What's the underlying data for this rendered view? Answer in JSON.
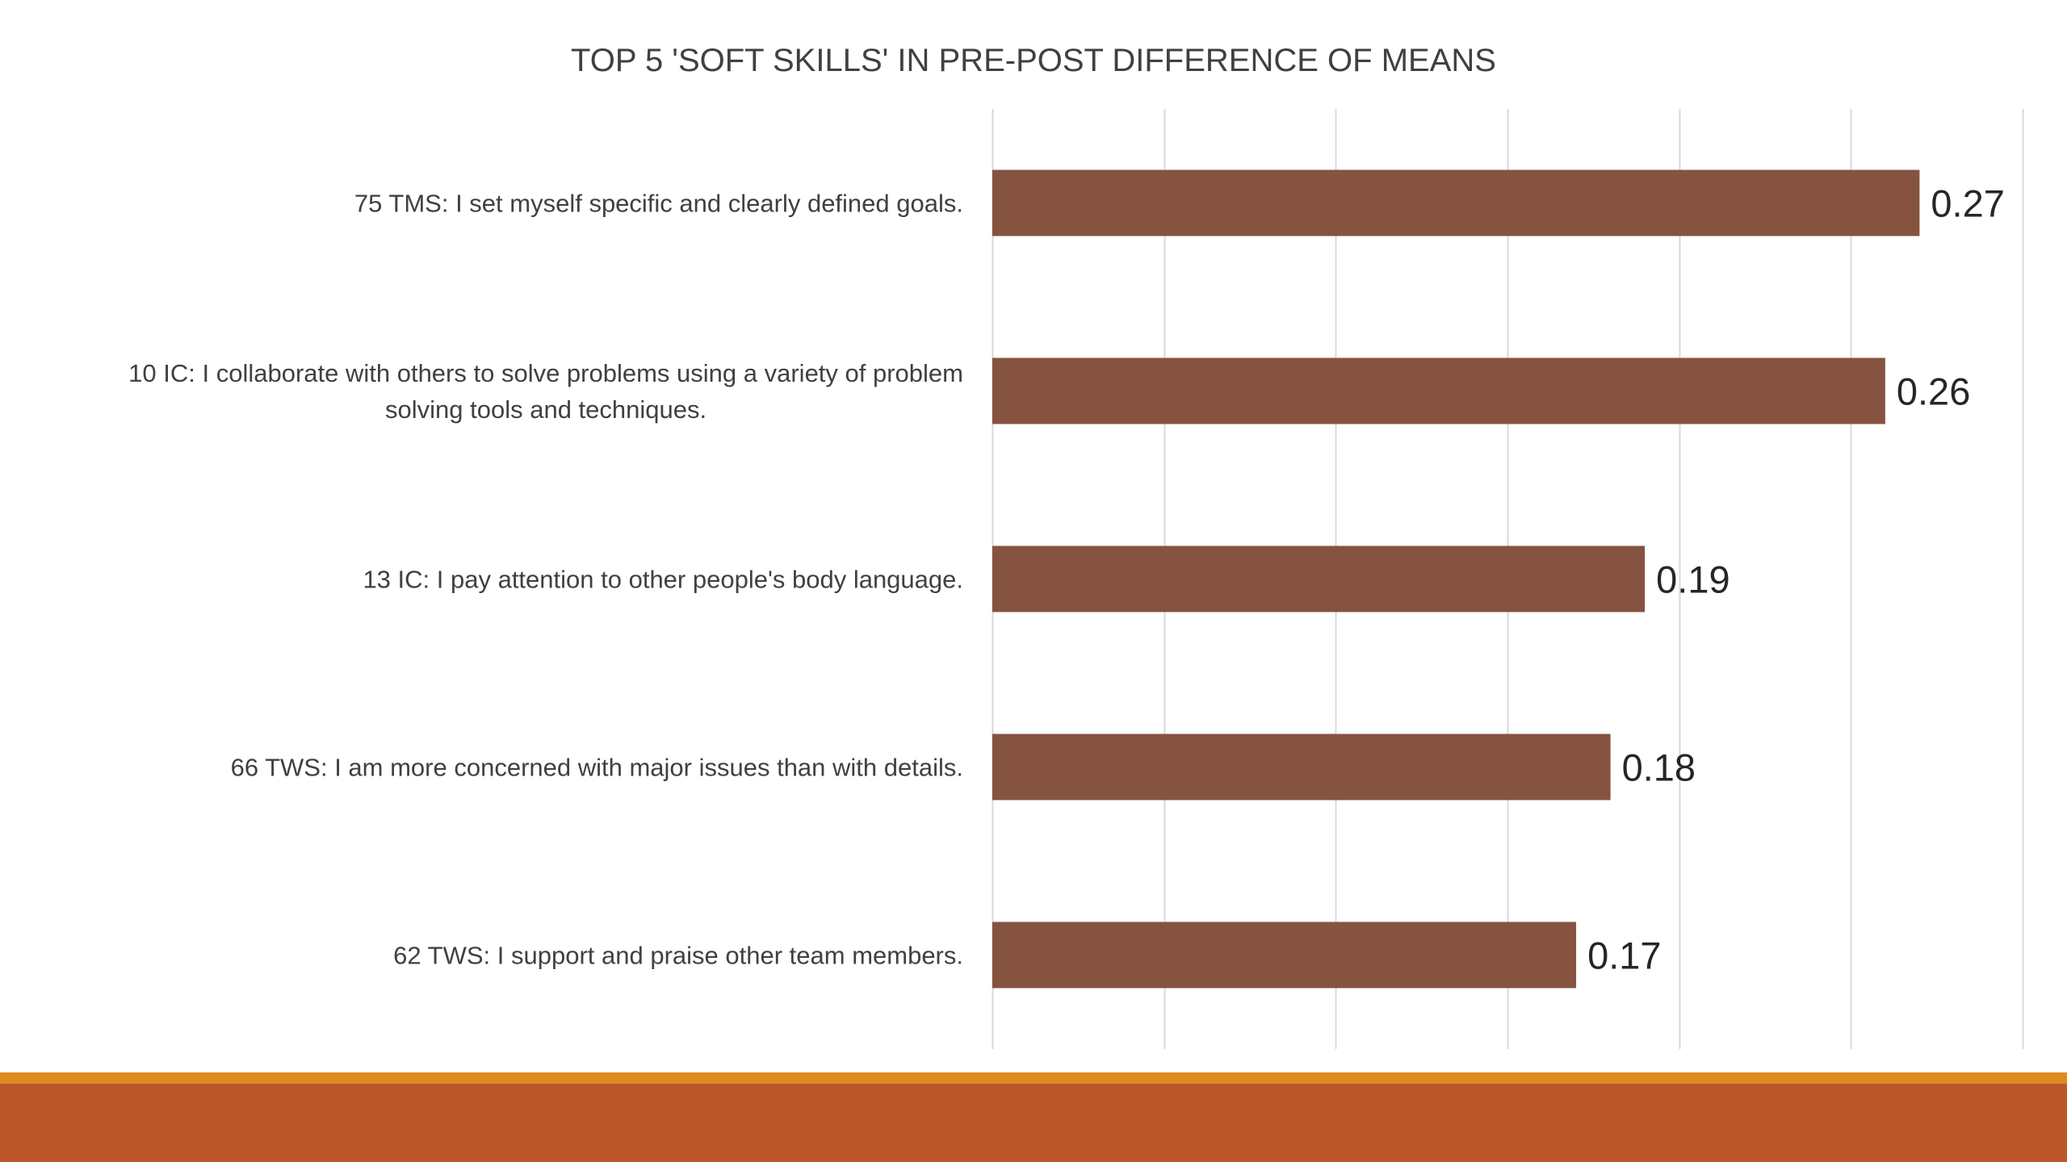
{
  "colors": {
    "bar": "#855340",
    "footer_band": "#bb572b",
    "footer_line": "#df8a1e",
    "gridline": "#d9d9d9",
    "text": "#404040"
  },
  "chart_data": {
    "type": "bar",
    "orientation": "horizontal",
    "title": "TOP 5 'SOFT SKILLS' IN PRE-POST DIFFERENCE OF MEANS",
    "categories": [
      "75 TMS: I set myself specific and clearly defined goals.",
      "10 IC: I collaborate with others to solve problems using a variety of problem solving tools and techniques.",
      "13 IC: I pay attention to other people's body language.",
      "66 TWS: I am more concerned with major issues than with details.",
      "62 TWS: I support and praise other team members."
    ],
    "category_lines": [
      [
        "75 TMS: I set myself specific and clearly defined goals."
      ],
      [
        "10 IC: I collaborate with others to solve problems using a variety of problem",
        "solving tools and techniques."
      ],
      [
        "13 IC: I pay attention to other people's body language."
      ],
      [
        "66 TWS: I am more concerned with major issues than with details."
      ],
      [
        "62 TWS: I support and praise other team members."
      ]
    ],
    "values": [
      0.27,
      0.26,
      0.19,
      0.18,
      0.17
    ],
    "data_labels": [
      "0.27",
      "0.26",
      "0.19",
      "0.18",
      "0.17"
    ],
    "xlim": [
      0,
      0.3
    ],
    "grid_step": 0.05,
    "grid": true,
    "xlabel": "",
    "ylabel": "",
    "legend": "none"
  }
}
